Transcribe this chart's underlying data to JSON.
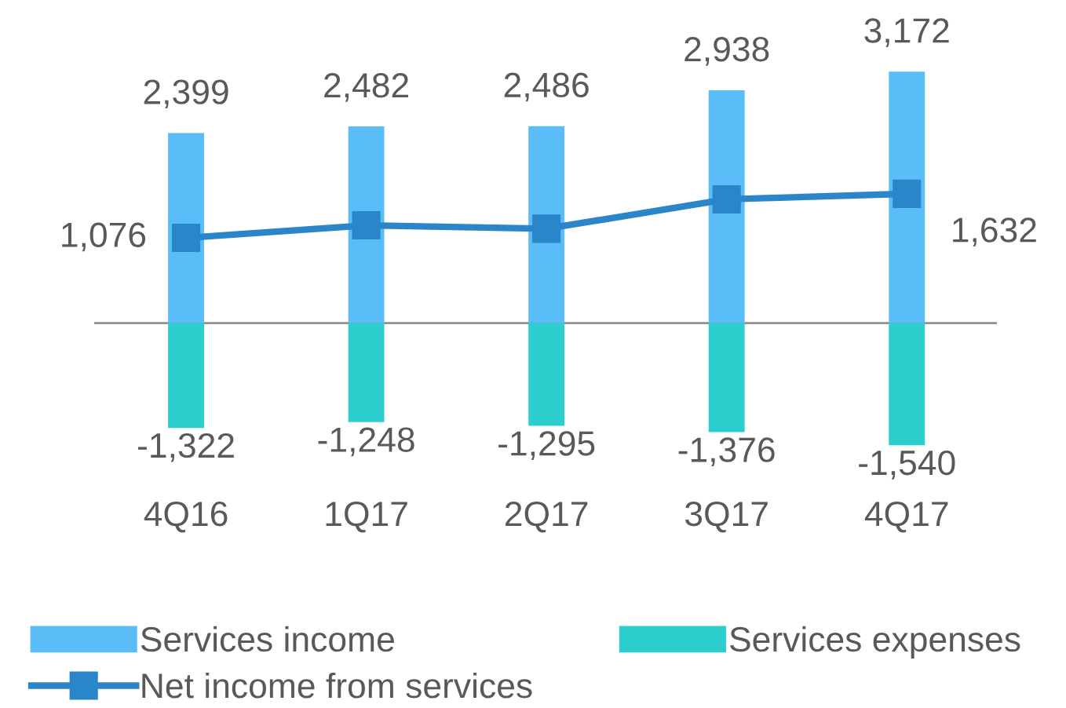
{
  "chart_data": {
    "type": "bar",
    "categories": [
      "4Q16",
      "1Q17",
      "2Q17",
      "3Q17",
      "4Q17"
    ],
    "series": [
      {
        "name": "Services income",
        "color": "#5bbdf8",
        "values": [
          2399,
          2482,
          2486,
          2938,
          3172
        ],
        "value_labels": [
          "2,399",
          "2,482",
          "2,486",
          "2,938",
          "3,172"
        ]
      },
      {
        "name": "Services expenses",
        "color": "#2dcfce",
        "values": [
          -1322,
          -1248,
          -1295,
          -1376,
          -1540
        ],
        "value_labels": [
          "-1,322",
          "-1,248",
          "-1,295",
          "-1,376",
          "-1,540"
        ]
      },
      {
        "name": "Net income from services",
        "type": "line",
        "color": "#2a86c8",
        "marker": "square",
        "values": [
          1076,
          1234,
          1191,
          1562,
          1632
        ],
        "value_labels": [
          "1,076",
          null,
          null,
          null,
          "1,632"
        ]
      }
    ],
    "stacked": true,
    "tick_labels": "x",
    "legend": "bottom",
    "grid": false
  }
}
